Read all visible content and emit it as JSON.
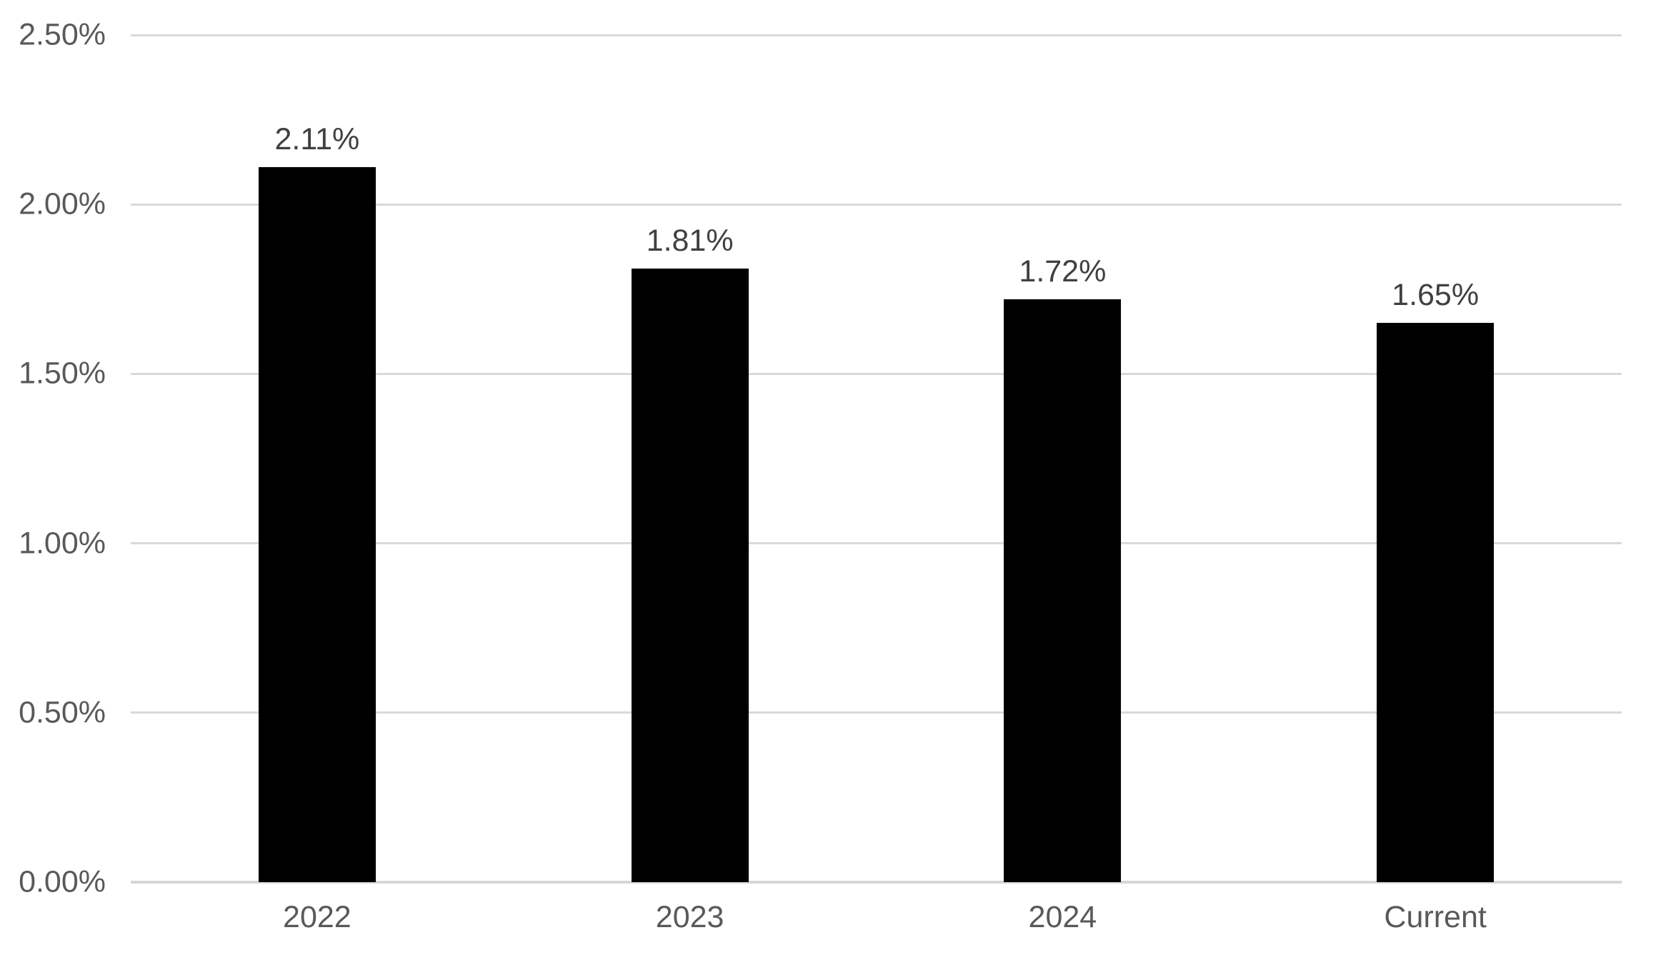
{
  "chart_data": {
    "type": "bar",
    "title": "",
    "xlabel": "",
    "ylabel": "",
    "categories": [
      "2022",
      "2023",
      "2024",
      "Current"
    ],
    "values": [
      2.11,
      1.81,
      1.72,
      1.65
    ],
    "data_labels": [
      "2.11%",
      "1.81%",
      "1.72%",
      "1.65%"
    ],
    "series_name": "",
    "ylim": [
      0,
      2.5
    ],
    "yticks": [
      {
        "value": 2.5,
        "label": "2.50%"
      },
      {
        "value": 2.0,
        "label": "2.00%"
      },
      {
        "value": 1.5,
        "label": "1.50%"
      },
      {
        "value": 1.0,
        "label": "1.00%"
      },
      {
        "value": 0.5,
        "label": "0.50%"
      },
      {
        "value": 0.0,
        "label": "0.00%"
      }
    ],
    "grid": true,
    "legend": false,
    "colors": {
      "bar": "#000000",
      "gridline": "#d9d9d9",
      "axis_line": "#d6d6d6",
      "axis_label": "#595959",
      "data_label": "#404040",
      "background": "#ffffff"
    }
  }
}
